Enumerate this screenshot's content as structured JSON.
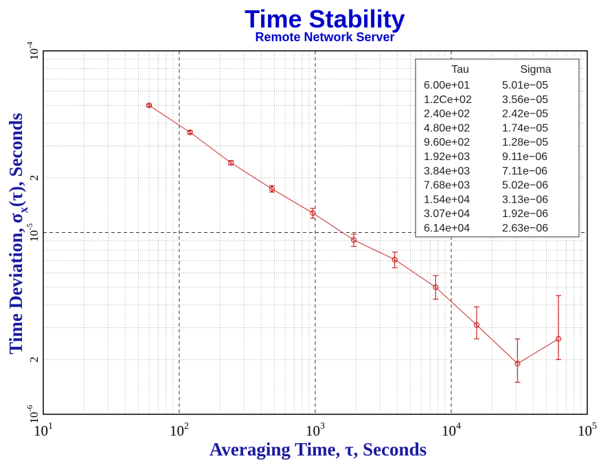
{
  "chart_data": {
    "type": "line",
    "title": "Time Stability",
    "subtitle": "Remote Network Server",
    "xlabel": "Averaging Time, τ, Seconds",
    "ylabel_prefix": "Time Deviation, ",
    "ylabel_sym": "σ",
    "ylabel_sub": "x",
    "ylabel_suffix": "(τ), Seconds",
    "x_scale": "log",
    "y_scale": "log",
    "xlim": [
      10,
      100000
    ],
    "ylim": [
      1e-06,
      0.0001
    ],
    "grid": true,
    "x_ticks": [
      {
        "base": "10",
        "exp": "1"
      },
      {
        "base": "10",
        "exp": "2"
      },
      {
        "base": "10",
        "exp": "3"
      },
      {
        "base": "10",
        "exp": "4"
      },
      {
        "base": "10",
        "exp": "5"
      }
    ],
    "y_ticks": [
      {
        "base": "10",
        "exp": "-6"
      },
      {
        "base": "10",
        "exp": "-5"
      },
      {
        "base": "10",
        "exp": "-4"
      }
    ],
    "y_minor_label": "2",
    "series": [
      {
        "color": "#cc2222",
        "x": [
          60,
          120,
          240,
          480,
          960,
          1920,
          3840,
          7680,
          15360,
          30720,
          61440
        ],
        "y": [
          5.01e-05,
          3.56e-05,
          2.42e-05,
          1.74e-05,
          1.28e-05,
          9.1e-06,
          7.1e-06,
          5e-06,
          3.1e-06,
          1.9e-06,
          2.6e-06
        ],
        "err_low": [
          4.94e-05,
          3.49e-05,
          2.36e-05,
          1.67e-05,
          1.2e-05,
          8.4e-06,
          6.4e-06,
          4.3e-06,
          2.6e-06,
          1.5e-06,
          2e-06
        ],
        "err_high": [
          5.08e-05,
          3.63e-05,
          2.49e-05,
          1.81e-05,
          1.36e-05,
          9.8e-06,
          7.8e-06,
          5.8e-06,
          3.9e-06,
          2.6e-06,
          4.5e-06
        ]
      }
    ],
    "legend_table": {
      "position": "top-right",
      "headers": [
        "Tau",
        "Sigma"
      ],
      "rows": [
        [
          "6.00e+01",
          "5.01e−05"
        ],
        [
          "1.2Ce+02",
          "3.56e−05"
        ],
        [
          "2.40e+02",
          "2.42e−05"
        ],
        [
          "4.80e+02",
          "1.74e−05"
        ],
        [
          "9.60e+02",
          "1.28e−05"
        ],
        [
          "1.92e+03",
          "9.11e−06"
        ],
        [
          "3.84e+03",
          "7.11e−06"
        ],
        [
          "7.68e+03",
          "5.02e−06"
        ],
        [
          "1.54e+04",
          "3.13e−06"
        ],
        [
          "3.07e+04",
          "1.92e−06"
        ],
        [
          "6.14e+04",
          "2.63e−06"
        ]
      ]
    },
    "colors": {
      "title": "#0000cc",
      "axis_label": "#1a1aa0",
      "series": "#cc2222"
    }
  }
}
